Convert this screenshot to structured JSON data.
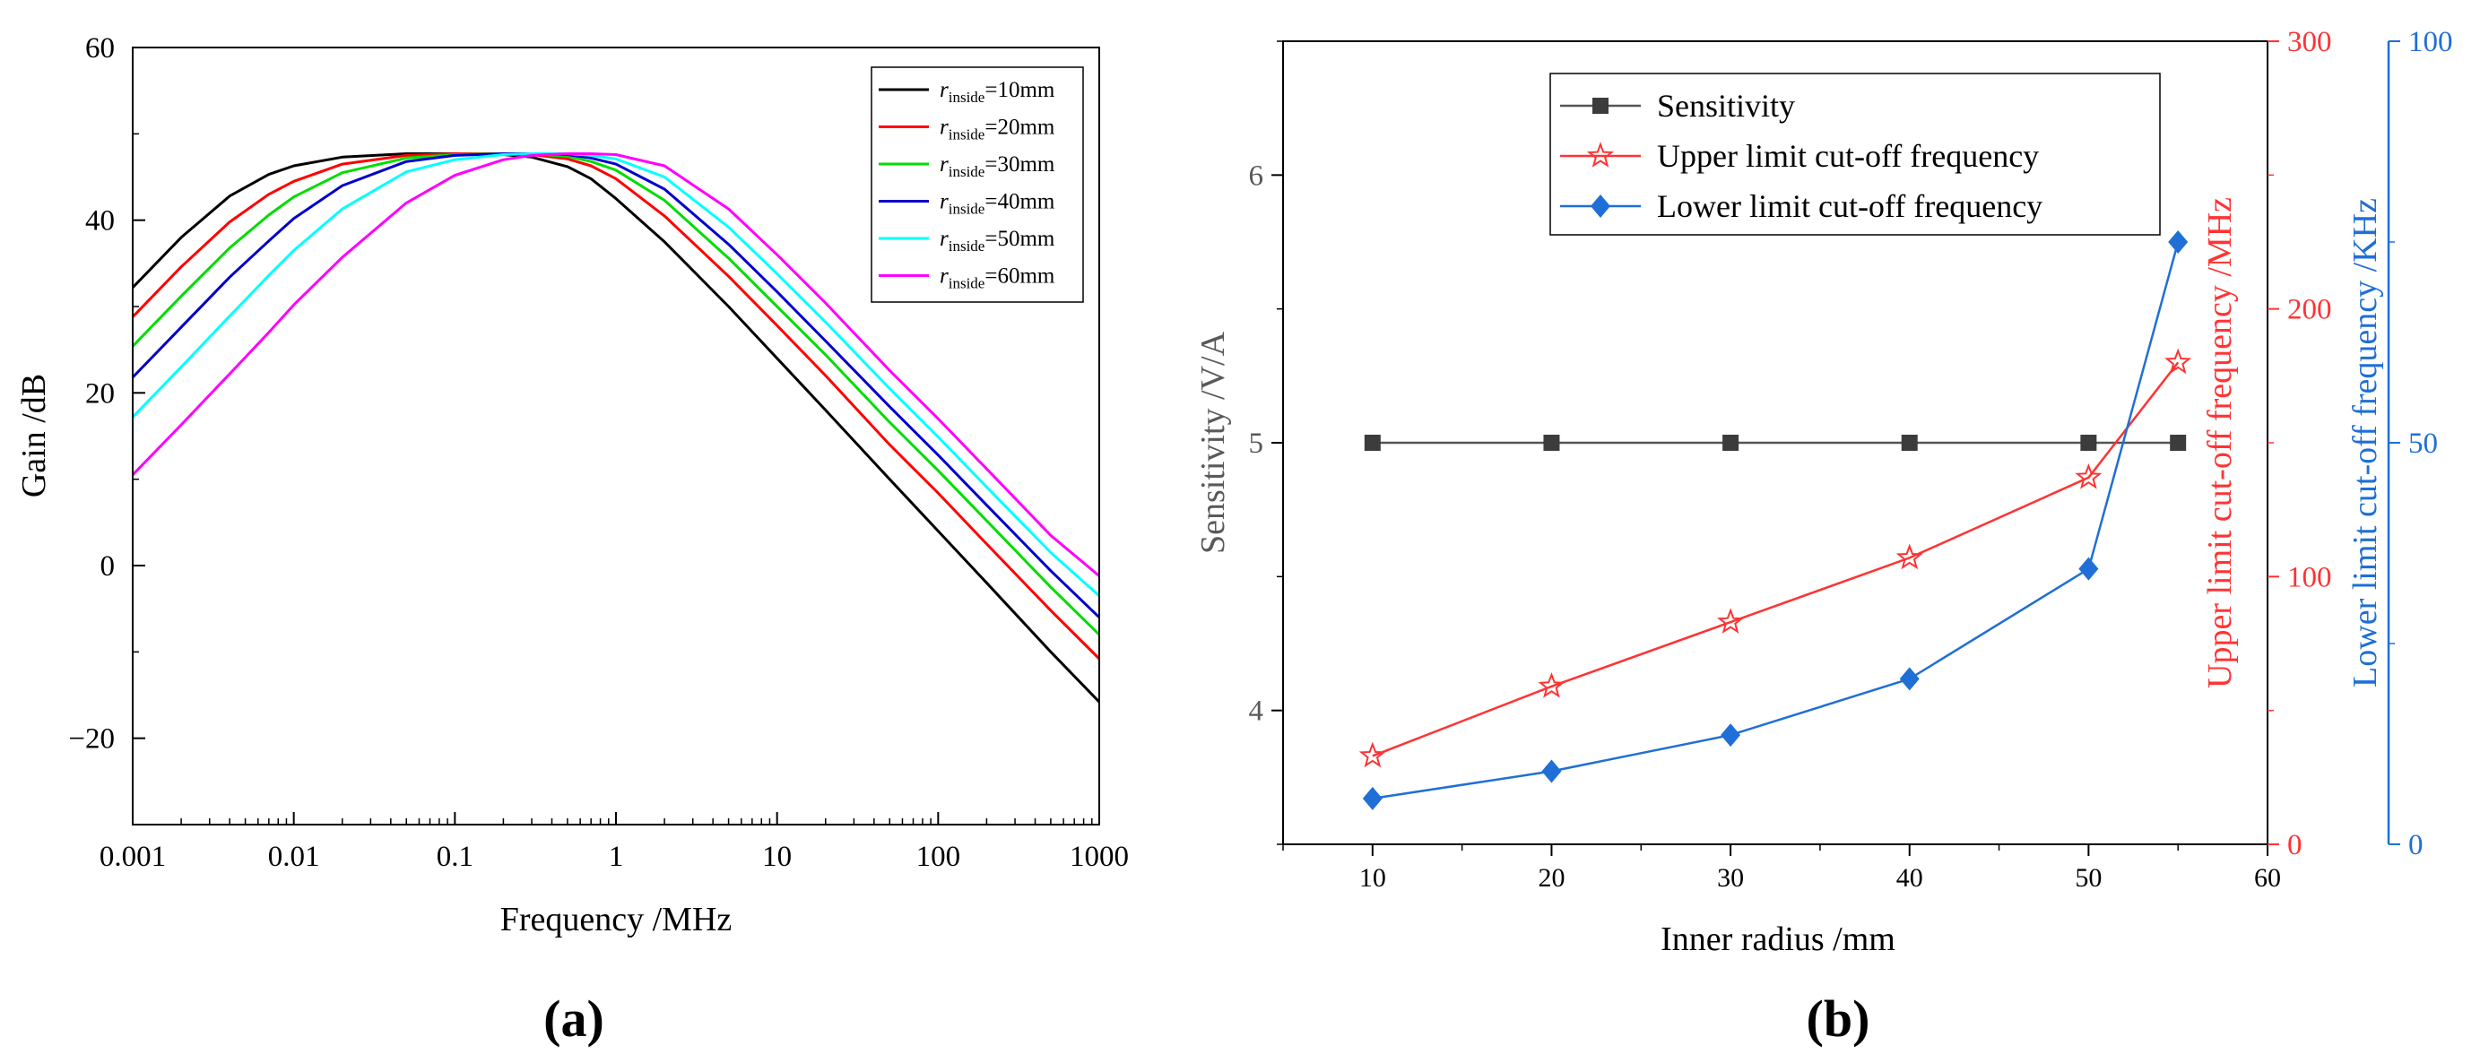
{
  "chart_data": [
    {
      "panel_label": "(a)",
      "type": "line",
      "xscale": "log",
      "xlabel": "Frequency /MHz",
      "ylabel": "Gain /dB",
      "xlim": [
        0.001,
        1000
      ],
      "ylim": [
        -30,
        60
      ],
      "xticks": [
        0.001,
        0.01,
        0.1,
        1,
        10,
        100,
        1000
      ],
      "xtick_labels": [
        "0.001",
        "0.01",
        "0.1",
        "1",
        "10",
        "100",
        "1000"
      ],
      "yticks": [
        -20,
        0,
        20,
        40,
        60
      ],
      "ytick_labels": [
        "−20",
        "0",
        "20",
        "40",
        "60"
      ],
      "legend_position": "top-right",
      "series": [
        {
          "name": "r_inside=10mm",
          "legend_r": "r",
          "legend_sub": "inside",
          "legend_rest": "=10mm",
          "color": "#000000",
          "x": [
            0.001,
            0.002,
            0.004,
            0.007,
            0.01,
            0.02,
            0.05,
            0.1,
            0.2,
            0.3,
            0.5,
            0.7,
            1,
            2,
            5,
            10,
            20,
            50,
            100,
            200,
            500,
            1000
          ],
          "y": [
            32.2,
            38.0,
            42.8,
            45.3,
            46.3,
            47.3,
            47.7,
            47.7,
            47.6,
            47.3,
            46.2,
            44.8,
            42.5,
            37.5,
            30.0,
            24.0,
            18.0,
            10.0,
            4.0,
            -2.0,
            -10.0,
            -15.8
          ]
        },
        {
          "name": "r_inside=20mm",
          "legend_r": "r",
          "legend_sub": "inside",
          "legend_rest": "=20mm",
          "color": "#ff0000",
          "x": [
            0.001,
            0.002,
            0.004,
            0.007,
            0.01,
            0.02,
            0.05,
            0.1,
            0.2,
            0.3,
            0.5,
            0.7,
            1,
            2,
            5,
            10,
            20,
            50,
            100,
            200,
            500,
            1000
          ],
          "y": [
            28.8,
            34.6,
            39.8,
            43.0,
            44.5,
            46.5,
            47.5,
            47.7,
            47.7,
            47.6,
            47.1,
            46.3,
            44.8,
            40.5,
            33.5,
            27.8,
            22.0,
            14.0,
            8.4,
            2.5,
            -5.2,
            -10.8
          ]
        },
        {
          "name": "r_inside=30mm",
          "legend_r": "r",
          "legend_sub": "inside",
          "legend_rest": "=30mm",
          "color": "#00dd00",
          "x": [
            0.001,
            0.002,
            0.004,
            0.007,
            0.01,
            0.02,
            0.05,
            0.1,
            0.2,
            0.3,
            0.5,
            0.7,
            1,
            2,
            5,
            10,
            20,
            50,
            100,
            200,
            500,
            1000
          ],
          "y": [
            25.4,
            31.2,
            36.8,
            40.6,
            42.7,
            45.5,
            47.2,
            47.6,
            47.7,
            47.7,
            47.4,
            46.8,
            45.8,
            42.3,
            35.6,
            30.0,
            24.4,
            16.6,
            11.0,
            5.2,
            -2.5,
            -8.0
          ]
        },
        {
          "name": "r_inside=40mm",
          "legend_r": "r",
          "legend_sub": "inside",
          "legend_rest": "=40mm",
          "color": "#0000cc",
          "x": [
            0.001,
            0.002,
            0.004,
            0.007,
            0.01,
            0.02,
            0.05,
            0.1,
            0.2,
            0.3,
            0.5,
            0.7,
            1,
            2,
            5,
            10,
            20,
            50,
            100,
            200,
            500,
            1000
          ],
          "y": [
            21.8,
            27.6,
            33.4,
            37.6,
            40.2,
            44.0,
            46.8,
            47.5,
            47.7,
            47.7,
            47.6,
            47.2,
            46.5,
            43.6,
            37.2,
            31.7,
            26.0,
            18.4,
            12.8,
            7.0,
            -0.6,
            -6.0
          ]
        },
        {
          "name": "r_inside=50mm",
          "legend_r": "r",
          "legend_sub": "inside",
          "legend_rest": "=50mm",
          "color": "#00ffff",
          "x": [
            0.001,
            0.002,
            0.004,
            0.007,
            0.01,
            0.02,
            0.05,
            0.1,
            0.2,
            0.3,
            0.5,
            0.7,
            1,
            2,
            5,
            10,
            20,
            50,
            100,
            200,
            500,
            1000
          ],
          "y": [
            17.2,
            23.0,
            28.9,
            33.6,
            36.5,
            41.3,
            45.6,
            47.0,
            47.6,
            47.7,
            47.7,
            47.5,
            47.1,
            45.0,
            39.2,
            33.8,
            28.2,
            20.5,
            14.9,
            9.1,
            1.5,
            -3.5
          ]
        },
        {
          "name": "r_inside=60mm",
          "legend_r": "r",
          "legend_sub": "inside",
          "legend_rest": "=60mm",
          "color": "#ff00ff",
          "x": [
            0.001,
            0.002,
            0.004,
            0.007,
            0.01,
            0.02,
            0.05,
            0.1,
            0.2,
            0.3,
            0.5,
            0.7,
            1,
            2,
            5,
            10,
            20,
            50,
            100,
            200,
            500,
            1000
          ],
          "y": [
            10.5,
            16.3,
            22.2,
            27.0,
            30.2,
            35.7,
            42.0,
            45.2,
            47.0,
            47.5,
            47.7,
            47.7,
            47.6,
            46.3,
            41.3,
            36.0,
            30.4,
            22.6,
            17.0,
            11.2,
            3.5,
            -1.2
          ]
        }
      ]
    },
    {
      "panel_label": "(b)",
      "type": "line",
      "xlabel": "Inner radius /mm",
      "xlim": [
        5,
        60
      ],
      "xticks": [
        10,
        20,
        30,
        40,
        50,
        60
      ],
      "legend_position": "top-center",
      "axes": {
        "left": {
          "label": "Sensitivity /V/A",
          "ylim": [
            3.5,
            6.5
          ],
          "ticks": [
            4,
            5,
            6
          ],
          "color": "#595959"
        },
        "right1": {
          "label": "Upper limit cut-off frequency /MHz",
          "ylim": [
            0,
            300
          ],
          "ticks": [
            0,
            100,
            200,
            300
          ],
          "color": "#ff3333"
        },
        "right2": {
          "label": "Lower limit cut-off frequency /KHz",
          "ylim": [
            0,
            100
          ],
          "ticks": [
            0,
            50,
            100
          ],
          "color": "#1f6fd6"
        }
      },
      "series": [
        {
          "name": "Sensitivity",
          "axis": "left",
          "marker": "square",
          "color": "#3c3c3c",
          "line_color": "#555555",
          "x": [
            10,
            20,
            30,
            40,
            50,
            55
          ],
          "y": [
            5,
            5,
            5,
            5,
            5,
            5
          ]
        },
        {
          "name": "Upper limit cut-off frequency",
          "axis": "right1",
          "marker": "star",
          "color": "#ff3333",
          "x": [
            10,
            20,
            30,
            40,
            50,
            55
          ],
          "y": [
            33,
            59,
            83,
            107,
            137,
            180
          ]
        },
        {
          "name": "Lower limit cut-off frequency",
          "axis": "right2",
          "marker": "diamond",
          "color": "#1f6fd6",
          "x": [
            10,
            20,
            30,
            40,
            50,
            55
          ],
          "y": [
            5.7,
            9.1,
            13.6,
            20.6,
            34.3,
            75.0
          ]
        }
      ]
    }
  ]
}
